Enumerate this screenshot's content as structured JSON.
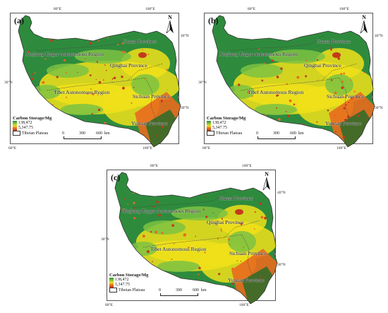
{
  "panels": [
    {
      "letter": "(a)"
    },
    {
      "letter": "(b)"
    },
    {
      "letter": "(c)"
    }
  ],
  "ticks": {
    "top": [
      "80°E",
      "100°E"
    ],
    "bottom": [
      "80°E",
      "100°E"
    ],
    "left": "30°N",
    "right": [
      "40°N",
      "30°N"
    ]
  },
  "regions": {
    "xinjiang": "Xinjiang Uygur Autonomous Region",
    "gansu": "Gansu Province",
    "qinghai": "Qinghai Province",
    "tibet": "Tibet Autonomous Region",
    "sichuan": "Sichuan Province",
    "yunnan": "Yunnan Province"
  },
  "legend": {
    "title": "Carbon Storage/Mg",
    "high": "138,472",
    "low": "5,347.75",
    "boundary": "Tibetan Plateau"
  },
  "scale": {
    "labels": [
      "0",
      "300",
      "600"
    ],
    "unit": "km"
  },
  "north": "N",
  "colors": {
    "high": "#2e8b3d",
    "mid_high": "#7dc242",
    "mid": "#f0e11a",
    "mid_low": "#e86a1e",
    "low": "#c43a1c"
  }
}
